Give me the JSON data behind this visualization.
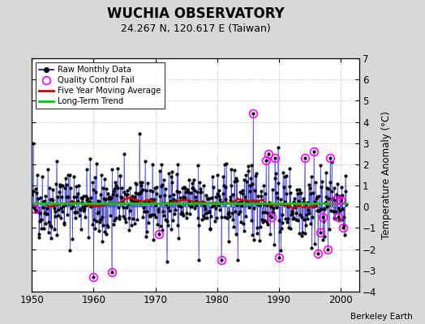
{
  "title": "WUCHIA OBSERVATORY",
  "subtitle": "24.267 N, 120.617 E (Taiwan)",
  "ylabel": "Temperature Anomaly (°C)",
  "credit": "Berkeley Earth",
  "xlim": [
    1950,
    2003
  ],
  "ylim": [
    -4,
    7
  ],
  "yticks": [
    -4,
    -3,
    -2,
    -1,
    0,
    1,
    2,
    3,
    4,
    5,
    6,
    7
  ],
  "xticks": [
    1950,
    1960,
    1970,
    1980,
    1990,
    2000
  ],
  "plot_bg": "#ffffff",
  "outer_bg": "#d8d8d8",
  "line_color": "#0000cc",
  "ma_color": "#cc0000",
  "trend_color": "#00cc00",
  "qc_color": "#ff00ff",
  "trend_intercept": 0.18,
  "trend_slope": 0.0,
  "seed": 42,
  "n_months": 612,
  "start_year": 1950,
  "qc_fail_indices": [
    6,
    120,
    155,
    247,
    368,
    430,
    455,
    460,
    466,
    472,
    480,
    530,
    548,
    556,
    560,
    565,
    575,
    580,
    590,
    595,
    600,
    605
  ],
  "qc_fail_values": [
    -0.1,
    -3.3,
    -3.1,
    -1.3,
    -2.5,
    4.4,
    2.2,
    2.5,
    -0.5,
    2.3,
    -2.4,
    2.3,
    2.6,
    -2.2,
    -1.2,
    -0.5,
    -2.0,
    2.3,
    0.3,
    -0.5,
    0.3,
    -1.0
  ]
}
